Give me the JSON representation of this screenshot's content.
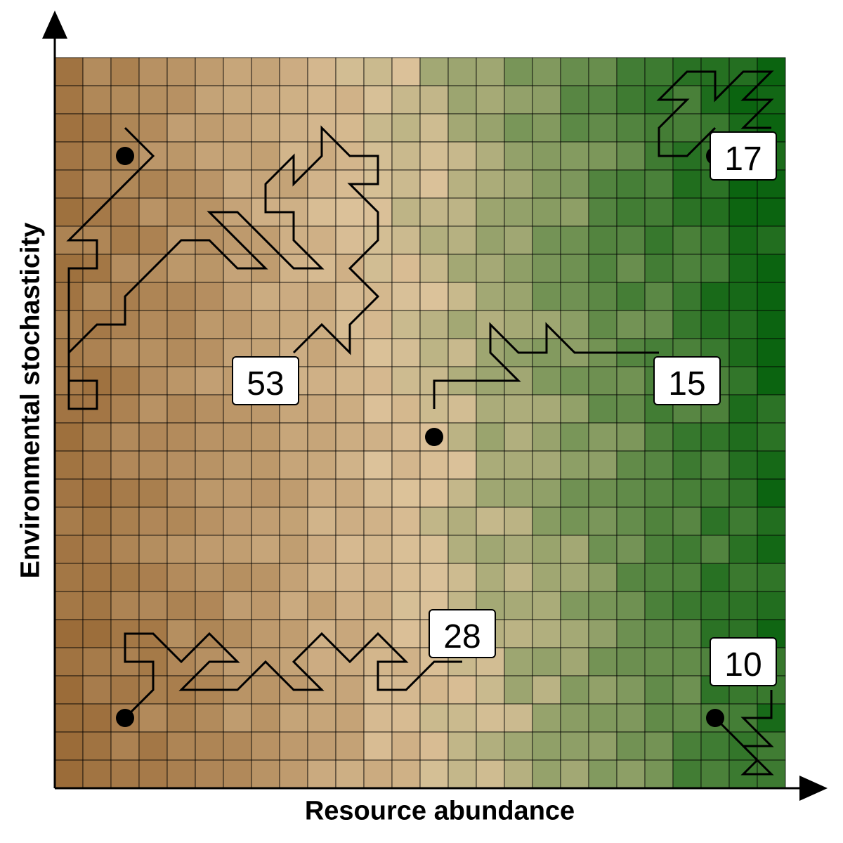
{
  "axes": {
    "x_label": "Resource abundance",
    "y_label": "Environmental stochasticity"
  },
  "grid": {
    "columns": 26,
    "rows": 26,
    "color_low": "#9b6c39",
    "color_mid": "#dcc29a",
    "color_high": "#0b6410",
    "line_color": "#000000"
  },
  "walks": [
    {
      "label": "53",
      "start_cell": [
        2,
        3
      ]
    },
    {
      "label": "15",
      "start_cell": [
        13,
        13
      ]
    },
    {
      "label": "17",
      "start_cell": [
        23,
        3
      ]
    },
    {
      "label": "28",
      "start_cell": [
        2,
        23
      ]
    },
    {
      "label": "10",
      "start_cell": [
        23,
        23
      ]
    }
  ]
}
